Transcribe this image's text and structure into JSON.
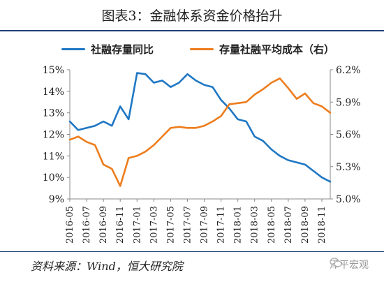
{
  "title": "图表3：金融体系资金价格抬升",
  "source": "资料来源：Wind，恒大研究院",
  "watermark": "泽平宏观",
  "chart_data": {
    "type": "line",
    "x": [
      "2016-05",
      "2016-06",
      "2016-07",
      "2016-08",
      "2016-09",
      "2016-10",
      "2016-11",
      "2016-12",
      "2017-01",
      "2017-02",
      "2017-03",
      "2017-04",
      "2017-05",
      "2017-06",
      "2017-07",
      "2017-08",
      "2017-09",
      "2017-10",
      "2017-11",
      "2017-12",
      "2018-01",
      "2018-02",
      "2018-03",
      "2018-04",
      "2018-05",
      "2018-06",
      "2018-07",
      "2018-08",
      "2018-09",
      "2018-10",
      "2018-11",
      "2018-12"
    ],
    "xticks": [
      "2016-05",
      "2016-07",
      "2016-09",
      "2016-11",
      "2017-01",
      "2017-03",
      "2017-05",
      "2017-07",
      "2017-09",
      "2017-11",
      "2018-01",
      "2018-03",
      "2018-05",
      "2018-07",
      "2018-09",
      "2018-11"
    ],
    "left_axis": {
      "ylim": [
        9,
        15
      ],
      "ticks": [
        "9%",
        "10%",
        "11%",
        "12%",
        "13%",
        "14%",
        "15%"
      ]
    },
    "right_axis": {
      "ylim": [
        5.0,
        6.2
      ],
      "ticks": [
        "5.0%",
        "5.3%",
        "5.6%",
        "5.9%",
        "6.2%"
      ]
    },
    "series": [
      {
        "name": "社融存量同比",
        "axis": "left",
        "color": "#1f77c4",
        "values": [
          12.6,
          12.2,
          12.3,
          12.4,
          12.6,
          12.4,
          13.3,
          12.7,
          14.85,
          14.8,
          14.4,
          14.5,
          14.2,
          14.4,
          14.8,
          14.5,
          14.3,
          14.2,
          13.6,
          13.2,
          12.7,
          12.6,
          11.9,
          11.7,
          11.3,
          11.0,
          10.8,
          10.7,
          10.6,
          10.3,
          10.0,
          9.8
        ]
      },
      {
        "name": "存量社融平均成本（右）",
        "axis": "right",
        "color": "#ed7d1d",
        "values": [
          5.55,
          5.58,
          5.53,
          5.5,
          5.32,
          5.28,
          5.12,
          5.38,
          5.4,
          5.44,
          5.5,
          5.58,
          5.66,
          5.67,
          5.66,
          5.66,
          5.68,
          5.72,
          5.77,
          5.88,
          5.89,
          5.9,
          5.97,
          6.02,
          6.08,
          6.12,
          6.03,
          5.93,
          5.98,
          5.89,
          5.86,
          5.8
        ]
      }
    ]
  }
}
